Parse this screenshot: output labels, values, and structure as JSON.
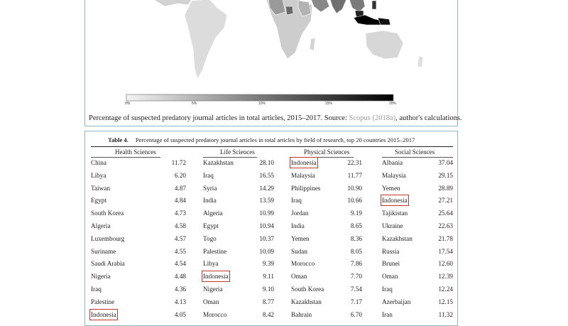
{
  "map": {
    "colorbar_ticks": [
      "0%",
      "5%",
      "10%",
      "15%",
      "20%"
    ],
    "caption_main": "Percentage of suspected predatory journal articles in total articles, 2015–2017. Source: ",
    "caption_source": "Scopus (2018a)",
    "caption_end": ", author's calculations."
  },
  "table": {
    "label": "Table 4.",
    "title": "Percentage of suspected predatory journal articles in total articles by field of research, top 20 countries 2015–2017",
    "fields": [
      {
        "name": "Health Sciences",
        "rows": [
          {
            "country": "China",
            "value": "11.72"
          },
          {
            "country": "Libya",
            "value": "6.20"
          },
          {
            "country": "Taiwan",
            "value": "4.87"
          },
          {
            "country": "Egypt",
            "value": "4.84"
          },
          {
            "country": "South Korea",
            "value": "4.73"
          },
          {
            "country": "Algeria",
            "value": "4.58"
          },
          {
            "country": "Luxembourg",
            "value": "4.57"
          },
          {
            "country": "Suriname",
            "value": "4.55"
          },
          {
            "country": "Saudi Arabia",
            "value": "4.54"
          },
          {
            "country": "Nigeria",
            "value": "4.48"
          },
          {
            "country": "Iraq",
            "value": "4.36"
          },
          {
            "country": "Palestine",
            "value": "4.13"
          },
          {
            "country": "Indonesia",
            "value": "4.05",
            "highlight": true
          }
        ]
      },
      {
        "name": "Life Sciences",
        "rows": [
          {
            "country": "Kazakhstan",
            "value": "28.10"
          },
          {
            "country": "Iraq",
            "value": "16.55"
          },
          {
            "country": "Syria",
            "value": "14.29"
          },
          {
            "country": "India",
            "value": "13.59"
          },
          {
            "country": "Algeria",
            "value": "10.99"
          },
          {
            "country": "Egypt",
            "value": "10.94"
          },
          {
            "country": "Togo",
            "value": "10.37"
          },
          {
            "country": "Palestine",
            "value": "10.09"
          },
          {
            "country": "Libya",
            "value": "9.39"
          },
          {
            "country": "Indonesia",
            "value": "9.11",
            "highlight": true
          },
          {
            "country": "Nigeria",
            "value": "9.10"
          },
          {
            "country": "Oman",
            "value": "8.77"
          },
          {
            "country": "Morocco",
            "value": "8.42"
          }
        ]
      },
      {
        "name": "Physical Sciences",
        "rows": [
          {
            "country": "Indonesia",
            "value": "22.31",
            "highlight": true
          },
          {
            "country": "Malaysia",
            "value": "11.77"
          },
          {
            "country": "Philippines",
            "value": "10.90"
          },
          {
            "country": "Iraq",
            "value": "10.66"
          },
          {
            "country": "Jordan",
            "value": "9.19"
          },
          {
            "country": "India",
            "value": "8.65"
          },
          {
            "country": "Yemen",
            "value": "8.36"
          },
          {
            "country": "Sudan",
            "value": "8.05"
          },
          {
            "country": "Morocco",
            "value": "7.86"
          },
          {
            "country": "Oman",
            "value": "7.70"
          },
          {
            "country": "South Korea",
            "value": "7.54"
          },
          {
            "country": "Kazakhstan",
            "value": "7.17"
          },
          {
            "country": "Bahrain",
            "value": "6.70"
          }
        ]
      },
      {
        "name": "Social Sciences",
        "rows": [
          {
            "country": "Albania",
            "value": "37.04"
          },
          {
            "country": "Malaysia",
            "value": "29.15"
          },
          {
            "country": "Yemen",
            "value": "28.89"
          },
          {
            "country": "Indonesia",
            "value": "27.21",
            "highlight": true
          },
          {
            "country": "Tajikistan",
            "value": "25.64"
          },
          {
            "country": "Ukraine",
            "value": "22.63"
          },
          {
            "country": "Kazakhstan",
            "value": "21.78"
          },
          {
            "country": "Russia",
            "value": "17.54"
          },
          {
            "country": "Brunei",
            "value": "12.60"
          },
          {
            "country": "Oman",
            "value": "12.39"
          },
          {
            "country": "Iraq",
            "value": "12.24"
          },
          {
            "country": "Azerbaijan",
            "value": "12.15"
          },
          {
            "country": "Iran",
            "value": "11.32"
          }
        ]
      }
    ]
  }
}
